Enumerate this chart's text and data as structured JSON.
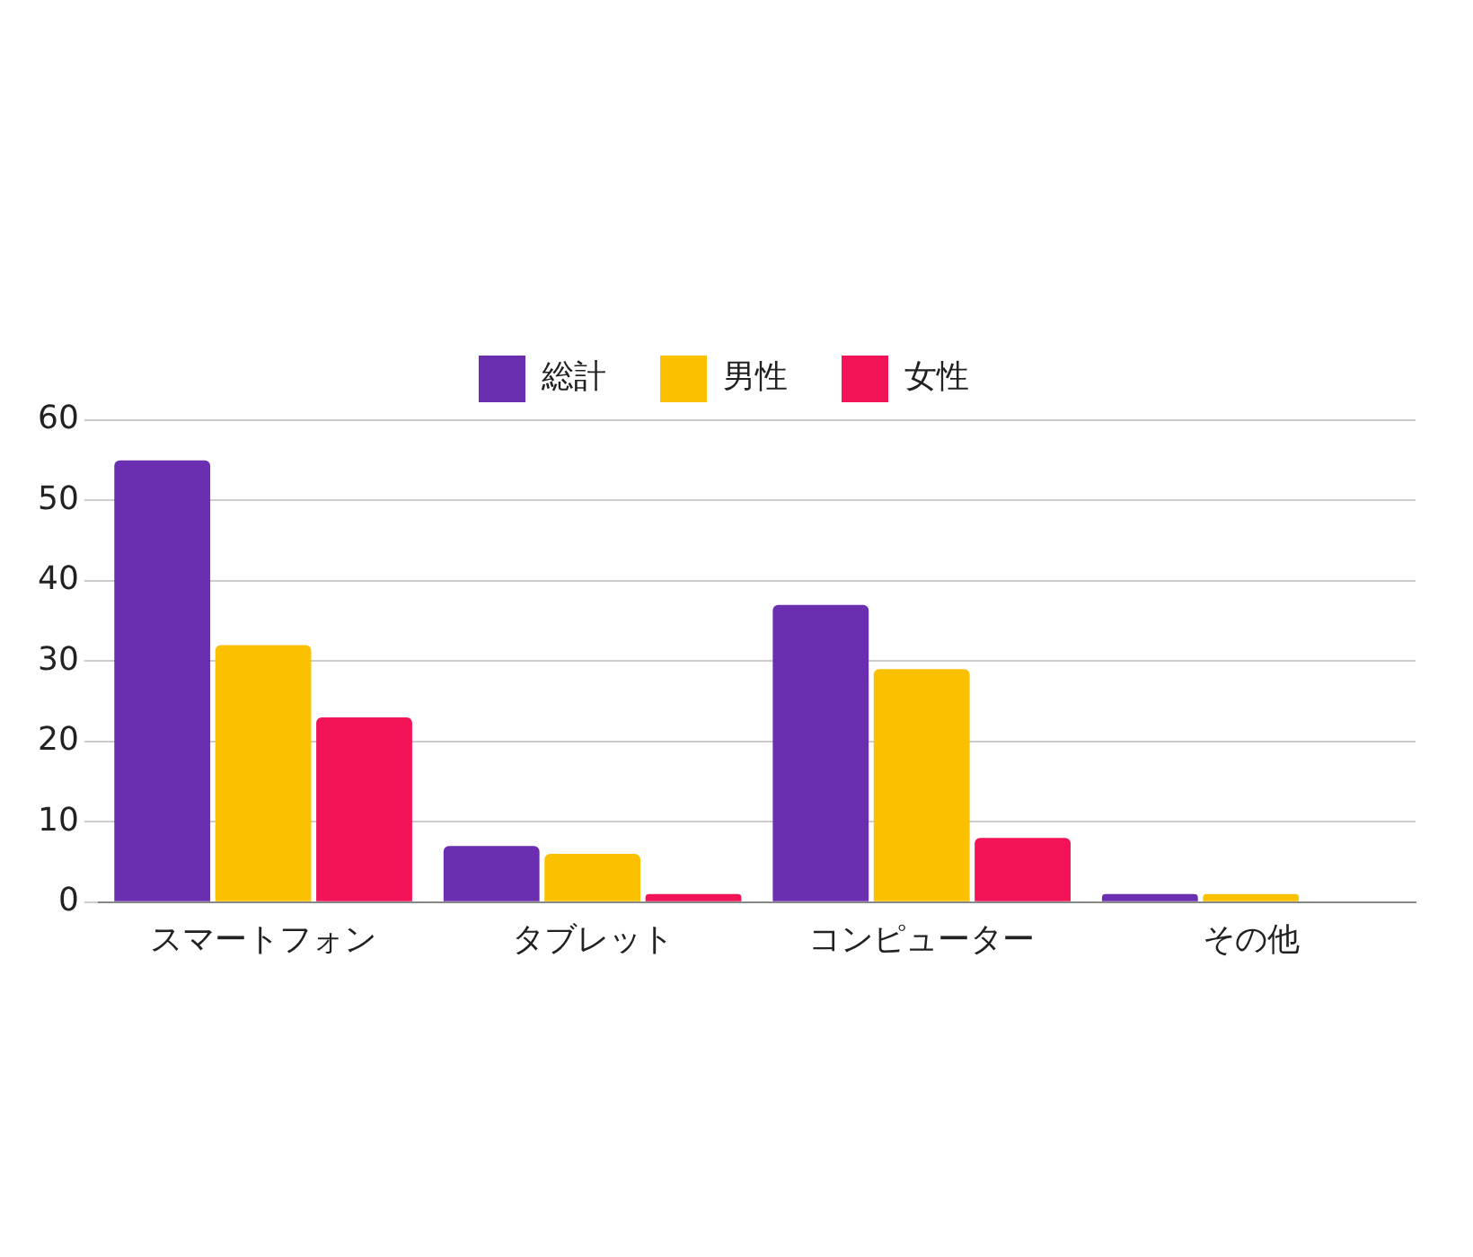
{
  "chart_data": {
    "type": "bar",
    "categories": [
      "スマートフォン",
      "タブレット",
      "コンピューター",
      "その他"
    ],
    "series": [
      {
        "name": "総計",
        "color": "#6a2fb0",
        "values": [
          55,
          7,
          37,
          1
        ]
      },
      {
        "name": "男性",
        "color": "#fbc100",
        "values": [
          32,
          6,
          29,
          1
        ]
      },
      {
        "name": "女性",
        "color": "#f21456",
        "values": [
          23,
          1,
          8,
          0
        ]
      }
    ],
    "ylim": [
      0,
      60
    ],
    "yticks": [
      0,
      10,
      20,
      30,
      40,
      50,
      60
    ],
    "grid": "y",
    "legend": "top"
  }
}
